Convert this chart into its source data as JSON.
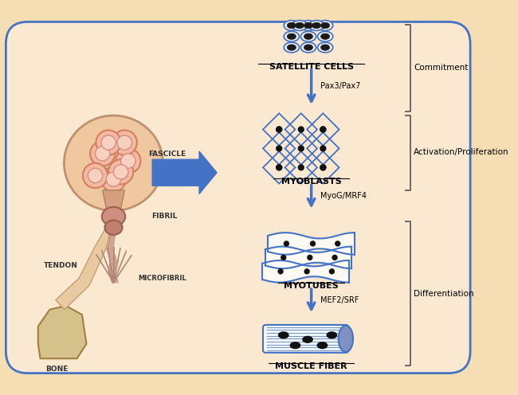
{
  "bg_color": "#F5DEB3",
  "bg_inner_color": "#FAE8D0",
  "border_color": "#4472C4",
  "arrow_color": "#4472C4",
  "label_color": "#000000",
  "satellite_cells_label": "SATELLITE CELLS",
  "myoblasts_label": "MYOBLASTS",
  "myotubes_label": "MYOTUBES",
  "muscle_fiber_label": "MUSCLE FIBER",
  "pax_label": "Pax3/Pax7",
  "myog_label": "MyoG/MRF4",
  "mef2_label": "MEF2/SRF",
  "commitment_label": "Commitment",
  "activation_label": "Activation/Proliferation",
  "differentiation_label": "Differentiation",
  "microfibril_label": "MICROFIBRIL",
  "fibril_label": "FIBRIL",
  "fascicle_label": "FASCICLE",
  "tendon_label": "TENDON",
  "bone_label": "BONE"
}
